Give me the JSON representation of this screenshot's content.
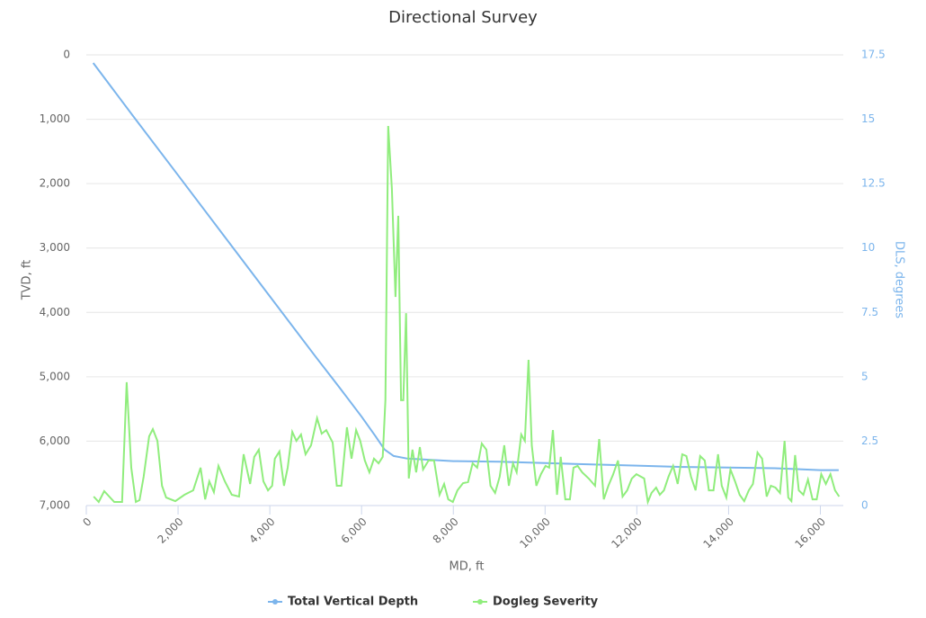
{
  "chart_data": {
    "type": "line",
    "title": "Directional Survey",
    "x_label": "MD, ft",
    "y_label": "TVD, ft",
    "y2_label": "DLS, degrees",
    "xlim": [
      0,
      16500
    ],
    "xticks": [
      0,
      {
        "value": 2000,
        "label": "2,000"
      },
      {
        "value": 4000,
        "label": "4,000"
      },
      {
        "value": 6000,
        "label": "6,000"
      },
      {
        "value": 8000,
        "label": "8,000"
      },
      {
        "value": 10000,
        "label": "10,000"
      },
      {
        "value": 12000,
        "label": "12,000"
      },
      {
        "value": 14000,
        "label": "14,000"
      },
      {
        "value": 16000,
        "label": "16,000"
      }
    ],
    "ylim": [
      0,
      7000
    ],
    "y_reversed": true,
    "yticks": [
      0,
      {
        "value": 1000,
        "label": "1,000"
      },
      {
        "value": 2000,
        "label": "2,000"
      },
      {
        "value": 3000,
        "label": "3,000"
      },
      {
        "value": 4000,
        "label": "4,000"
      },
      {
        "value": 5000,
        "label": "5,000"
      },
      {
        "value": 6000,
        "label": "6,000"
      },
      {
        "value": 7000,
        "label": "7,000"
      }
    ],
    "y2lim": [
      0,
      17.5
    ],
    "y2ticks": [
      0,
      2.5,
      5,
      7.5,
      10,
      12.5,
      15,
      17.5
    ],
    "grid": true,
    "legend": "bottom",
    "series": [
      {
        "name": "Total Vertical Depth",
        "color": "#7cb5ec",
        "x": [
          150,
          1000,
          2000,
          3000,
          4000,
          5000,
          5500,
          6000,
          6300,
          6500,
          6700,
          7000,
          8000,
          9000,
          10000,
          11000,
          12000,
          13000,
          14000,
          15000,
          16000,
          16400
        ],
        "values": [
          126,
          930,
          1870,
          2810,
          3750,
          4690,
          5150,
          5620,
          5920,
          6130,
          6230,
          6270,
          6310,
          6320,
          6340,
          6360,
          6380,
          6400,
          6410,
          6420,
          6450,
          6450
        ]
      },
      {
        "name": "Dogleg Severity",
        "color": "#90ed7d",
        "axis": "y2",
        "x": [
          160,
          270,
          390,
          610,
          780,
          880,
          980,
          1080,
          1160,
          1250,
          1370,
          1450,
          1550,
          1650,
          1740,
          1940,
          2140,
          2330,
          2490,
          2590,
          2680,
          2780,
          2880,
          3020,
          3170,
          3330,
          3430,
          3570,
          3660,
          3760,
          3860,
          3960,
          4050,
          4110,
          4210,
          4310,
          4390,
          4490,
          4580,
          4680,
          4780,
          4900,
          5030,
          5130,
          5230,
          5370,
          5460,
          5560,
          5680,
          5780,
          5880,
          5970,
          6070,
          6170,
          6270,
          6370,
          6460,
          6520,
          6580,
          6660,
          6740,
          6800,
          6860,
          6910,
          6970,
          7030,
          7110,
          7190,
          7270,
          7340,
          7460,
          7580,
          7700,
          7800,
          7890,
          7990,
          8090,
          8210,
          8320,
          8420,
          8520,
          8620,
          8720,
          8810,
          8910,
          9010,
          9110,
          9210,
          9300,
          9380,
          9480,
          9560,
          9640,
          9710,
          9810,
          9910,
          10010,
          10090,
          10170,
          10260,
          10340,
          10440,
          10540,
          10620,
          10710,
          10810,
          10950,
          11090,
          11180,
          11280,
          11380,
          11480,
          11590,
          11690,
          11790,
          11890,
          11990,
          12160,
          12240,
          12320,
          12420,
          12500,
          12590,
          12690,
          12790,
          12890,
          12990,
          13080,
          13180,
          13280,
          13380,
          13480,
          13570,
          13670,
          13770,
          13850,
          13950,
          14040,
          14140,
          14240,
          14340,
          14440,
          14530,
          14630,
          14730,
          14830,
          14920,
          15020,
          15120,
          15220,
          15300,
          15370,
          15450,
          15530,
          15630,
          15730,
          15830,
          15920,
          16020,
          16120,
          16220,
          16320,
          16410
        ],
        "values": [
          0.35,
          0.14,
          0.56,
          0.14,
          0.14,
          4.79,
          1.47,
          0.14,
          0.21,
          1.12,
          2.69,
          2.97,
          2.51,
          0.77,
          0.31,
          0.17,
          0.42,
          0.59,
          1.47,
          0.24,
          0.94,
          0.52,
          1.54,
          0.94,
          0.42,
          0.35,
          1.99,
          0.84,
          1.89,
          2.17,
          0.94,
          0.59,
          0.77,
          1.82,
          2.1,
          0.77,
          1.47,
          2.86,
          2.51,
          2.76,
          1.99,
          2.34,
          3.39,
          2.79,
          2.93,
          2.45,
          0.77,
          0.77,
          3.04,
          1.82,
          2.93,
          2.51,
          1.75,
          1.29,
          1.82,
          1.64,
          1.89,
          4.09,
          14.74,
          12.3,
          8.1,
          11.25,
          4.09,
          4.09,
          7.47,
          1.05,
          2.17,
          1.29,
          2.27,
          1.4,
          1.75,
          1.75,
          0.42,
          0.84,
          0.24,
          0.14,
          0.59,
          0.87,
          0.91,
          1.64,
          1.47,
          2.41,
          2.17,
          0.77,
          0.49,
          1.12,
          2.34,
          0.77,
          1.64,
          1.29,
          2.76,
          2.51,
          5.66,
          2.34,
          0.77,
          1.22,
          1.54,
          1.47,
          2.93,
          0.42,
          1.89,
          0.24,
          0.24,
          1.47,
          1.54,
          1.29,
          1.05,
          0.77,
          2.58,
          0.24,
          0.77,
          1.19,
          1.75,
          0.35,
          0.59,
          1.05,
          1.22,
          1.05,
          0.14,
          0.49,
          0.7,
          0.42,
          0.59,
          1.12,
          1.54,
          0.84,
          1.99,
          1.92,
          1.12,
          0.59,
          1.92,
          1.75,
          0.59,
          0.59,
          1.99,
          0.77,
          0.31,
          1.4,
          0.94,
          0.42,
          0.17,
          0.59,
          0.84,
          2.06,
          1.82,
          0.35,
          0.77,
          0.7,
          0.49,
          2.51,
          0.31,
          0.17,
          1.96,
          0.59,
          0.42,
          1.01,
          0.24,
          0.24,
          1.22,
          0.84,
          1.22,
          0.59,
          0.35
        ]
      }
    ]
  }
}
